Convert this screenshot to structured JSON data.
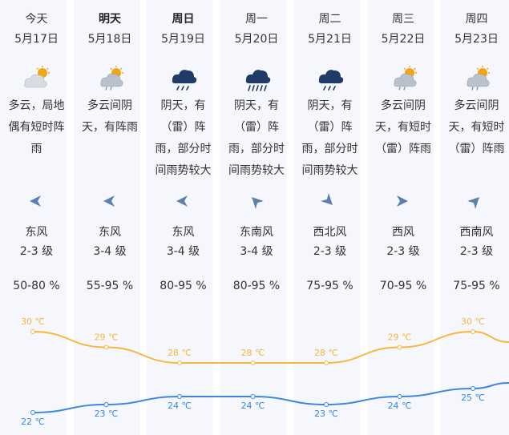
{
  "days": [
    {
      "weekday": "今天",
      "date": "5月17日",
      "bold": false,
      "icon": "partly-cloudy-rain-icon",
      "desc": [
        "多云，局地",
        "偶有短时阵",
        "雨"
      ],
      "wind_dir": "东风",
      "wind_level": "2-3 级",
      "wind_rotation": 180,
      "humidity": "50-80 %",
      "high": "30 ℃",
      "low": "22 ℃"
    },
    {
      "weekday": "明天",
      "date": "5月18日",
      "bold": true,
      "icon": "cloudy-sun-rain-icon",
      "desc": [
        "多云间阴",
        "天，有阵雨"
      ],
      "wind_dir": "东风",
      "wind_level": "3-4 级",
      "wind_rotation": 180,
      "humidity": "55-95 %",
      "high": "29 ℃",
      "low": "23 ℃"
    },
    {
      "weekday": "周日",
      "date": "5月19日",
      "bold": true,
      "icon": "thunder-rain-icon",
      "desc": [
        "阴天，有",
        "（雷）阵",
        "雨，部分时",
        "间雨势较大"
      ],
      "wind_dir": "东风",
      "wind_level": "3-4 级",
      "wind_rotation": 180,
      "humidity": "80-95 %",
      "high": "28 ℃",
      "low": "24 ℃"
    },
    {
      "weekday": "周一",
      "date": "5月20日",
      "bold": false,
      "icon": "heavy-rain-icon",
      "desc": [
        "阴天，有",
        "（雷）阵",
        "雨，部分时",
        "间雨势较大"
      ],
      "wind_dir": "东南风",
      "wind_level": "3-4 级",
      "wind_rotation": 225,
      "humidity": "80-95 %",
      "high": "28 ℃",
      "low": "24 ℃"
    },
    {
      "weekday": "周二",
      "date": "5月21日",
      "bold": false,
      "icon": "thunder-rain-icon",
      "desc": [
        "阴天，有",
        "（雷）阵",
        "雨，部分时",
        "间雨势较大"
      ],
      "wind_dir": "西北风",
      "wind_level": "2-3 级",
      "wind_rotation": 45,
      "humidity": "75-95 %",
      "high": "28 ℃",
      "low": "23 ℃"
    },
    {
      "weekday": "周三",
      "date": "5月22日",
      "bold": false,
      "icon": "cloudy-sun-rain-icon",
      "desc": [
        "多云间阴",
        "天，有短时",
        "（雷）阵雨"
      ],
      "wind_dir": "西风",
      "wind_level": "2-3 级",
      "wind_rotation": 0,
      "humidity": "70-95 %",
      "high": "29 ℃",
      "low": "24 ℃"
    },
    {
      "weekday": "周四",
      "date": "5月23日",
      "bold": false,
      "icon": "cloudy-sun-rain-icon",
      "desc": [
        "多云间阴",
        "天，有短时",
        "（雷）阵雨"
      ],
      "wind_dir": "西南风",
      "wind_level": "2-3 级",
      "wind_rotation": -45,
      "humidity": "75-95 %",
      "high": "30 ℃",
      "low": "25 ℃"
    }
  ],
  "chart_data": {
    "type": "line",
    "categories": [
      "5月17日",
      "5月18日",
      "5月19日",
      "5月20日",
      "5月21日",
      "5月22日",
      "5月23日"
    ],
    "series": [
      {
        "values": [
          30,
          29,
          28,
          28,
          28,
          29,
          30
        ],
        "color": "#f6b73c"
      },
      {
        "values": [
          22,
          23,
          24,
          24,
          23,
          24,
          25
        ],
        "color": "#3a86e0"
      }
    ],
    "unit": "℃"
  },
  "colors": {
    "high_line": "#f6b73c",
    "low_line": "#3a86e0",
    "column_bg": "#f5f7fd",
    "arrow": "#5b7fb0"
  }
}
